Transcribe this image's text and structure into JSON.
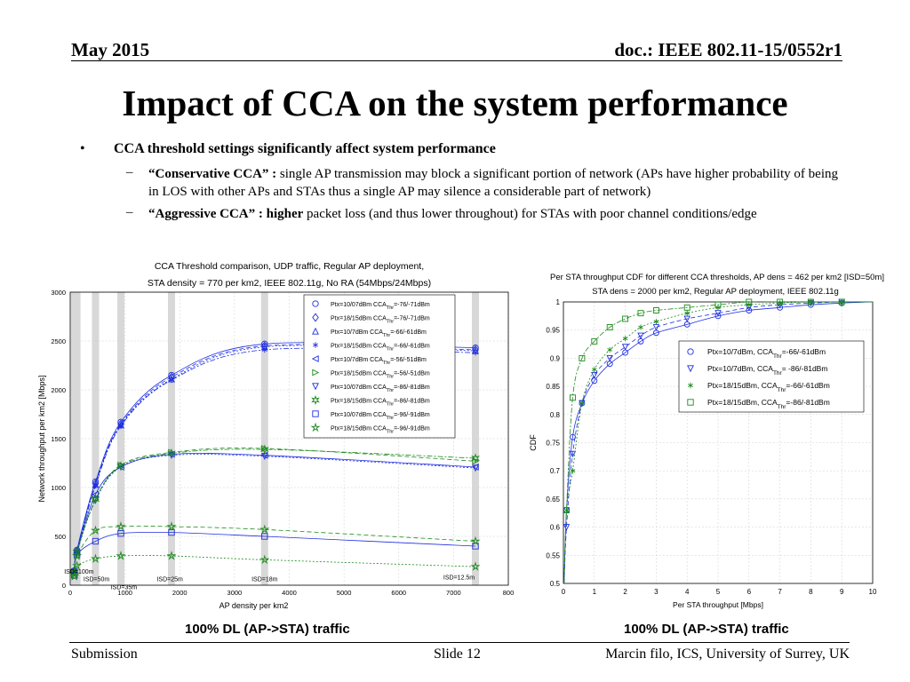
{
  "header": {
    "date": "May 2015",
    "doc": "doc.: IEEE 802.11-15/0552r1"
  },
  "title": "Impact of CCA on the system performance",
  "bullet": {
    "main": "CCA threshold settings significantly affect system performance",
    "sub1_bold": "“Conservative CCA” :",
    "sub1_text": " single AP transmission may block a significant portion of network (APs have higher probability of being in LOS with other APs and STAs thus a single AP may silence a considerable part of network)",
    "sub2_bold": "“Aggressive CCA” : higher",
    "sub2_text": " packet loss (and thus lower throughout) for STAs with poor channel conditions/edge"
  },
  "captions": {
    "left": "100% DL (AP->STA) traffic",
    "right": "100% DL (AP->STA) traffic"
  },
  "footer": {
    "left": "Submission",
    "center": "Slide 12",
    "right": "Marcin filo, ICS, University of Surrey, UK"
  },
  "colors": {
    "blue": "#1f2fe0",
    "green": "#1a8a1a",
    "grid": "#cfcfcf"
  },
  "chart_data": [
    {
      "type": "line",
      "title": "CCA Threshold comparison, UDP traffic, Regular AP deployment,",
      "subtitle": "STA density = 770 per km2, IEEE 802.11g, No RA (54Mbps/24Mbps)",
      "xlabel": "AP density per km2",
      "ylabel": "Network throughput per km2 [Mbps]",
      "xlim": [
        0,
        8000
      ],
      "ylim": [
        0,
        3000
      ],
      "xticks": [
        "0",
        "1000",
        "2000",
        "3000",
        "4000",
        "5000",
        "6000",
        "7000",
        "800"
      ],
      "yticks": [
        "0",
        "500",
        "1000",
        "1500",
        "2000",
        "2500",
        "3000"
      ],
      "x": [
        77,
        123,
        462,
        925,
        1850,
        3550,
        7400
      ],
      "annotations": [
        "ISD=100m",
        "ISD=50m",
        "ISD=35m",
        "ISD=25m",
        "ISD=18m",
        "ISD=12.5m"
      ],
      "legend_position": "top-right",
      "series": [
        {
          "name": "Ptx=10/07dBm CCA",
          "sub": "Thr",
          "suffix": "=-76/-71dBm",
          "marker": "circle",
          "color": "blue",
          "values": [
            150,
            360,
            1060,
            1670,
            2150,
            2470,
            2430
          ]
        },
        {
          "name": "Ptx=18/15dBm CCA",
          "sub": "Thr",
          "suffix": "=-76/-71dBm",
          "marker": "diamond",
          "color": "blue",
          "values": [
            145,
            350,
            1040,
            1650,
            2130,
            2450,
            2410
          ]
        },
        {
          "name": "Ptx=10/7dBm CCA",
          "sub": "Thr",
          "suffix": "=-66/-61dBm",
          "marker": "triangle-up",
          "color": "blue",
          "values": [
            140,
            345,
            1030,
            1640,
            2110,
            2440,
            2400
          ]
        },
        {
          "name": "Ptx=18/15dBm CCA",
          "sub": "Thr",
          "suffix": "=-66/-61dBm",
          "marker": "star",
          "color": "blue",
          "values": [
            135,
            340,
            1020,
            1630,
            2100,
            2410,
            2380
          ]
        },
        {
          "name": "Ptx=10/7dBm CCA",
          "sub": "Thr",
          "suffix": "=-56/-51dBm",
          "marker": "triangle-left",
          "color": "blue",
          "values": [
            130,
            330,
            930,
            1210,
            1340,
            1330,
            1210
          ]
        },
        {
          "name": "Ptx=18/15dBm CCA",
          "sub": "Thr",
          "suffix": "=-56/-51dBm",
          "marker": "triangle-right",
          "color": "green",
          "values": [
            140,
            340,
            880,
            1230,
            1360,
            1400,
            1270
          ]
        },
        {
          "name": "Ptx=10/07dBm CCA",
          "sub": "Thr",
          "suffix": "=-86/-81dBm",
          "marker": "triangle-down",
          "color": "blue",
          "values": [
            135,
            330,
            870,
            1210,
            1330,
            1320,
            1200
          ]
        },
        {
          "name": "Ptx=18/15dBm CCA",
          "sub": "Thr",
          "suffix": "=-86/-81dBm",
          "marker": "hexagram",
          "color": "green",
          "values": [
            140,
            335,
            880,
            1220,
            1350,
            1390,
            1300
          ]
        },
        {
          "name": "Ptx=10/07dBm CCA",
          "sub": "Thr",
          "suffix": "=-96/-91dBm",
          "marker": "square",
          "color": "blue",
          "values": [
            100,
            310,
            450,
            530,
            540,
            500,
            400
          ]
        },
        {
          "name": "Ptx=18/15dBm CCA",
          "sub": "Thr",
          "suffix": "=-96/-91dBm",
          "marker": "pentagram",
          "color": "green",
          "values": [
            110,
            300,
            560,
            600,
            600,
            570,
            450
          ]
        }
      ],
      "extra_series": [
        {
          "name": "",
          "color": "green",
          "marker": "pentagram",
          "values": [
            90,
            200,
            270,
            300,
            300,
            260,
            190
          ]
        }
      ]
    },
    {
      "type": "line",
      "title": "Per STA throughput CDF for different CCA thresholds, AP dens = 462 per km2 [ISD=50m]",
      "subtitle": "STA dens = 2000 per km2, Regular AP deployment, IEEE 802.11g",
      "xlabel": "Per STA throughput [Mbps]",
      "ylabel": "CDF",
      "xlim": [
        0,
        10
      ],
      "ylim": [
        0.5,
        1
      ],
      "xticks": [
        "0",
        "1",
        "2",
        "3",
        "4",
        "5",
        "6",
        "7",
        "8",
        "9",
        "10"
      ],
      "yticks": [
        "0.5",
        "0.55",
        "0.6",
        "0.65",
        "0.7",
        "0.75",
        "0.8",
        "0.85",
        "0.9",
        "0.95",
        "1"
      ],
      "legend_position": "top-right",
      "series": [
        {
          "name": "Ptx=10/7dBm, CCA",
          "sub": "Thr",
          "suffix": "=-66/-61dBm",
          "marker": "circle",
          "color": "blue",
          "x": [
            0.1,
            0.3,
            0.6,
            1.0,
            1.5,
            2.0,
            2.5,
            3.0,
            4.0,
            5.0,
            6.0,
            7.0,
            8.0,
            9.0
          ],
          "values": [
            0.63,
            0.76,
            0.82,
            0.86,
            0.89,
            0.91,
            0.93,
            0.945,
            0.96,
            0.975,
            0.985,
            0.99,
            0.995,
            0.998
          ]
        },
        {
          "name": "Ptx=10/7dBm, CCA",
          "sub": "Thr",
          "suffix": "= -86/-81dBm",
          "marker": "triangle-down",
          "color": "blue",
          "x": [
            0.1,
            0.3,
            0.6,
            1.0,
            1.5,
            2.0,
            2.5,
            3.0,
            4.0,
            5.0,
            6.0,
            7.0,
            8.0,
            9.0
          ],
          "values": [
            0.6,
            0.73,
            0.82,
            0.87,
            0.9,
            0.92,
            0.94,
            0.955,
            0.97,
            0.98,
            0.99,
            0.995,
            0.998,
            1.0
          ]
        },
        {
          "name": "Ptx=18/15dBm, CCA",
          "sub": "Thr",
          "suffix": "=-66/-61dBm",
          "marker": "star",
          "color": "green",
          "x": [
            0.1,
            0.3,
            0.6,
            1.0,
            1.5,
            2.0,
            2.5,
            3.0,
            4.0,
            5.0,
            6.0,
            7.0,
            8.0,
            9.0
          ],
          "values": [
            0.63,
            0.7,
            0.82,
            0.88,
            0.915,
            0.935,
            0.955,
            0.965,
            0.98,
            0.99,
            0.995,
            0.998,
            1.0,
            1.0
          ]
        },
        {
          "name": "Ptx=18/15dBm, CCA",
          "sub": "Thr",
          "suffix": "=-86/-81dBm",
          "marker": "square",
          "color": "green",
          "x": [
            0.1,
            0.3,
            0.6,
            1.0,
            1.5,
            2.0,
            2.5,
            3.0,
            4.0,
            5.0,
            6.0,
            7.0,
            8.0,
            9.0
          ],
          "values": [
            0.63,
            0.83,
            0.9,
            0.93,
            0.955,
            0.97,
            0.98,
            0.985,
            0.99,
            0.995,
            1.0,
            1.0,
            1.0,
            1.0
          ]
        }
      ]
    }
  ]
}
